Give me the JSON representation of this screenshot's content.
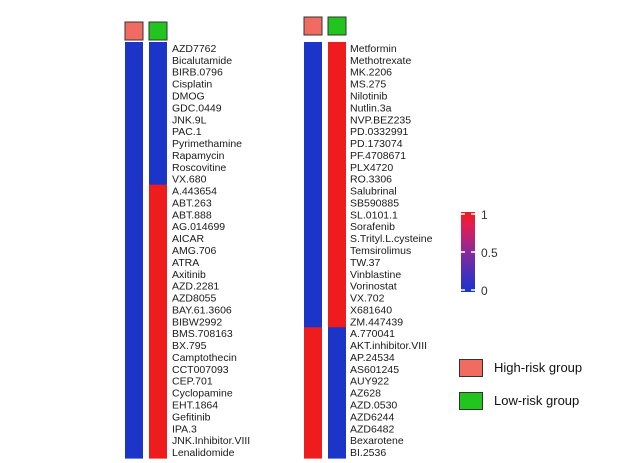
{
  "chart_data": {
    "type": "heatmap",
    "title": "",
    "columns": [
      "High-risk group",
      "Low-risk group"
    ],
    "value_scale": {
      "min": 0,
      "max": 1,
      "ticks": [
        0,
        0.5,
        1
      ],
      "low_color": "#1a35c8",
      "high_color": "#ee1c1c"
    },
    "panels": [
      {
        "drugs": [
          "AZD7762",
          "Bicalutamide",
          "BIRB.0796",
          "Cisplatin",
          "DMOG",
          "GDC.0449",
          "JNK.9L",
          "PAC.1",
          "Pyrimethamine",
          "Rapamycin",
          "Roscovitine",
          "VX.680",
          "A.443654",
          "ABT.263",
          "ABT.888",
          "AG.014699",
          "AICAR",
          "AMG.706",
          "ATRA",
          "Axitinib",
          "AZD.2281",
          "AZD8055",
          "BAY.61.3606",
          "BIBW2992",
          "BMS.708163",
          "BX.795",
          "Camptothecin",
          "CCT007093",
          "CEP.701",
          "Cyclopamine",
          "EHT.1864",
          "Gefitinib",
          "IPA.3",
          "JNK.Inhibitor.VIII",
          "Lenalidomide"
        ],
        "high_risk": [
          0,
          0,
          0,
          0,
          0,
          0,
          0,
          0,
          0,
          0,
          0,
          0,
          0,
          0,
          0,
          0,
          0,
          0,
          0,
          0,
          0,
          0,
          0,
          0,
          0,
          0,
          0,
          0,
          0,
          0,
          0,
          0,
          0,
          0,
          0
        ],
        "low_risk": [
          0,
          0,
          0,
          0,
          0,
          0,
          0,
          0,
          0,
          0,
          0,
          0,
          1,
          1,
          1,
          1,
          1,
          1,
          1,
          1,
          1,
          1,
          1,
          1,
          1,
          1,
          1,
          1,
          1,
          1,
          1,
          1,
          1,
          1,
          1
        ]
      },
      {
        "drugs": [
          "Metformin",
          "Methotrexate",
          "MK.2206",
          "MS.275",
          "Nilotinib",
          "Nutlin.3a",
          "NVP.BEZ235",
          "PD.0332991",
          "PD.173074",
          "PF.4708671",
          "PLX4720",
          "RO.3306",
          "Salubrinal",
          "SB590885",
          "SL.0101.1",
          "Sorafenib",
          "S.Trityl.L.cysteine",
          "Temsirolimus",
          "TW.37",
          "Vinblastine",
          "Vorinostat",
          "VX.702",
          "X681640",
          "ZM.447439",
          "A.770041",
          "AKT.inhibitor.VIII",
          "AP.24534",
          "AS601245",
          "AUY922",
          "AZ628",
          "AZD.0530",
          "AZD6244",
          "AZD6482",
          "Bexarotene",
          "BI.2536"
        ],
        "high_risk": [
          0,
          0,
          0,
          0,
          0,
          0,
          0,
          0,
          0,
          0,
          0,
          0,
          0,
          0,
          0,
          0,
          0,
          0,
          0,
          0,
          0,
          0,
          0,
          0,
          1,
          1,
          1,
          1,
          1,
          1,
          1,
          1,
          1,
          1,
          1
        ],
        "low_risk": [
          1,
          1,
          1,
          1,
          1,
          1,
          1,
          1,
          1,
          1,
          1,
          1,
          1,
          1,
          1,
          1,
          1,
          1,
          1,
          1,
          1,
          1,
          1,
          1,
          0,
          0,
          0,
          0,
          0,
          0,
          0,
          0,
          0,
          0,
          0
        ]
      }
    ],
    "legend": [
      {
        "label": "High-risk group",
        "color": "#f26b63"
      },
      {
        "label": "Low-risk group",
        "color": "#22c51e"
      }
    ]
  },
  "colorbar": {
    "tick_labels": [
      "1",
      "0.5",
      "0"
    ]
  },
  "legend_labels": {
    "high": "High-risk group",
    "low": "Low-risk group"
  }
}
